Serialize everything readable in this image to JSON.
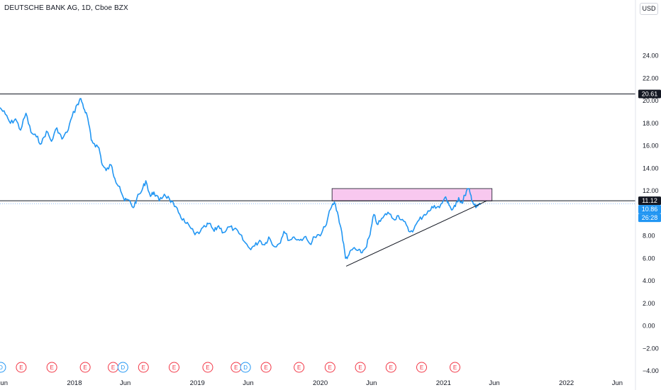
{
  "header": {
    "title": "DEUTSCHE BANK AG, 1D, Cboe BZX",
    "currency": "USD"
  },
  "colors": {
    "price_line": "#2196f3",
    "zone_fill": "#f8c8ef",
    "horizontal_line": "#131722",
    "event_E": "#f23645",
    "event_D": "#2196f3",
    "last_price_tag": "#2196f3",
    "level_tag": "#131722"
  },
  "chart_data": {
    "type": "line",
    "title": "DEUTSCHE BANK AG, 1D, Cboe BZX",
    "xlabel": "",
    "ylabel": "",
    "ylim": [
      -4.0,
      26.0
    ],
    "xlim": [
      "2017-05-25",
      "2022-07-25"
    ],
    "y_ticks": [
      "24.00",
      "22.00",
      "20.00",
      "18.00",
      "16.00",
      "14.00",
      "12.00",
      "10.00",
      "8.00",
      "6.00",
      "4.00",
      "2.00",
      "0.00",
      "−2.00",
      "−4.00"
    ],
    "x_ticks": [
      {
        "label": "Jun",
        "date": "2017-06-01"
      },
      {
        "label": "2018",
        "date": "2018-01-01"
      },
      {
        "label": "Jun",
        "date": "2018-06-01"
      },
      {
        "label": "2019",
        "date": "2019-01-01"
      },
      {
        "label": "Jun",
        "date": "2019-06-01"
      },
      {
        "label": "2020",
        "date": "2020-01-01"
      },
      {
        "label": "Jun",
        "date": "2020-06-01"
      },
      {
        "label": "2021",
        "date": "2021-01-01"
      },
      {
        "label": "Jun",
        "date": "2021-06-01"
      },
      {
        "label": "2022",
        "date": "2022-01-01"
      },
      {
        "label": "Jun",
        "date": "2022-06-01"
      }
    ],
    "grid": false,
    "series": [
      {
        "values": [
          [
            "2017-05-25",
            19.4
          ],
          [
            "2017-06-10",
            18.8
          ],
          [
            "2017-06-25",
            18.0
          ],
          [
            "2017-07-10",
            18.4
          ],
          [
            "2017-07-25",
            17.4
          ],
          [
            "2017-08-10",
            18.9
          ],
          [
            "2017-08-25",
            17.2
          ],
          [
            "2017-09-10",
            16.8
          ],
          [
            "2017-09-25",
            16.2
          ],
          [
            "2017-10-10",
            17.3
          ],
          [
            "2017-10-25",
            16.4
          ],
          [
            "2017-11-10",
            17.6
          ],
          [
            "2017-11-25",
            16.6
          ],
          [
            "2017-12-10",
            17.2
          ],
          [
            "2017-12-25",
            18.6
          ],
          [
            "2018-01-10",
            19.7
          ],
          [
            "2018-01-20",
            20.2
          ],
          [
            "2018-01-31",
            19.2
          ],
          [
            "2018-02-10",
            18.4
          ],
          [
            "2018-02-20",
            16.5
          ],
          [
            "2018-03-01",
            16.2
          ],
          [
            "2018-03-15",
            15.8
          ],
          [
            "2018-03-25",
            14.3
          ],
          [
            "2018-04-05",
            13.8
          ],
          [
            "2018-04-20",
            14.3
          ],
          [
            "2018-05-01",
            13.1
          ],
          [
            "2018-05-15",
            12.4
          ],
          [
            "2018-05-30",
            11.1
          ],
          [
            "2018-06-10",
            11.2
          ],
          [
            "2018-06-25",
            10.5
          ],
          [
            "2018-07-05",
            11.3
          ],
          [
            "2018-07-20",
            12.0
          ],
          [
            "2018-08-01",
            12.9
          ],
          [
            "2018-08-15",
            11.5
          ],
          [
            "2018-08-25",
            11.9
          ],
          [
            "2018-09-10",
            11.1
          ],
          [
            "2018-09-25",
            11.7
          ],
          [
            "2018-10-10",
            11.3
          ],
          [
            "2018-10-25",
            10.6
          ],
          [
            "2018-11-10",
            9.9
          ],
          [
            "2018-11-25",
            9.2
          ],
          [
            "2018-12-10",
            8.8
          ],
          [
            "2018-12-25",
            8.1
          ],
          [
            "2019-01-10",
            8.4
          ],
          [
            "2019-01-25",
            8.8
          ],
          [
            "2019-02-05",
            9.1
          ],
          [
            "2019-02-20",
            8.4
          ],
          [
            "2019-03-05",
            8.9
          ],
          [
            "2019-03-20",
            8.3
          ],
          [
            "2019-04-05",
            8.8
          ],
          [
            "2019-04-20",
            8.6
          ],
          [
            "2019-05-05",
            8.2
          ],
          [
            "2019-05-20",
            7.5
          ],
          [
            "2019-06-05",
            6.9
          ],
          [
            "2019-06-20",
            7.1
          ],
          [
            "2019-07-05",
            7.6
          ],
          [
            "2019-07-20",
            7.2
          ],
          [
            "2019-08-01",
            7.9
          ],
          [
            "2019-08-15",
            7.1
          ],
          [
            "2019-09-01",
            7.3
          ],
          [
            "2019-09-15",
            8.4
          ],
          [
            "2019-10-01",
            7.6
          ],
          [
            "2019-10-15",
            7.9
          ],
          [
            "2019-11-01",
            7.6
          ],
          [
            "2019-11-15",
            7.9
          ],
          [
            "2019-12-01",
            7.3
          ],
          [
            "2019-12-15",
            7.9
          ],
          [
            "2020-01-01",
            8.0
          ],
          [
            "2020-01-15",
            8.8
          ],
          [
            "2020-02-01",
            10.4
          ],
          [
            "2020-02-12",
            11.0
          ],
          [
            "2020-02-24",
            9.7
          ],
          [
            "2020-03-05",
            8.3
          ],
          [
            "2020-03-16",
            6.0
          ],
          [
            "2020-03-26",
            6.3
          ],
          [
            "2020-04-08",
            6.9
          ],
          [
            "2020-04-20",
            6.7
          ],
          [
            "2020-05-01",
            6.5
          ],
          [
            "2020-05-14",
            6.9
          ],
          [
            "2020-05-28",
            8.1
          ],
          [
            "2020-06-08",
            9.9
          ],
          [
            "2020-06-20",
            9.0
          ],
          [
            "2020-07-05",
            9.6
          ],
          [
            "2020-07-20",
            10.1
          ],
          [
            "2020-08-05",
            9.5
          ],
          [
            "2020-08-20",
            9.8
          ],
          [
            "2020-09-05",
            9.3
          ],
          [
            "2020-09-20",
            8.4
          ],
          [
            "2020-10-05",
            8.6
          ],
          [
            "2020-10-20",
            9.4
          ],
          [
            "2020-11-05",
            9.9
          ],
          [
            "2020-11-20",
            10.2
          ],
          [
            "2020-12-05",
            10.7
          ],
          [
            "2020-12-20",
            10.5
          ],
          [
            "2021-01-05",
            11.4
          ],
          [
            "2021-01-15",
            11.0
          ],
          [
            "2021-01-25",
            10.3
          ],
          [
            "2021-02-05",
            10.6
          ],
          [
            "2021-02-15",
            11.4
          ],
          [
            "2021-02-25",
            10.9
          ],
          [
            "2021-03-05",
            11.6
          ],
          [
            "2021-03-15",
            12.2
          ],
          [
            "2021-03-22",
            11.7
          ],
          [
            "2021-03-29",
            11.0
          ],
          [
            "2021-04-07",
            10.5
          ],
          [
            "2021-04-14",
            10.7
          ],
          [
            "2021-04-22",
            10.86
          ]
        ]
      }
    ],
    "annotations": {
      "horizontal_levels": [
        20.61,
        11.12
      ],
      "resistance_zone": {
        "x_start": "2020-02-05",
        "x_end": "2021-05-25",
        "y_low": 11.1,
        "y_high": 12.2
      },
      "trendline": {
        "from": [
          "2020-03-18",
          5.3
        ],
        "to": [
          "2021-05-10",
          11.12
        ]
      },
      "last_price": 10.86,
      "countdown": "26:28",
      "current_price_line": 10.86
    },
    "price_tags": [
      {
        "label": "20.61",
        "value": 20.61,
        "kind": "level"
      },
      {
        "label": "11.12",
        "value": 11.12,
        "kind": "level"
      },
      {
        "label": "10.86",
        "value": 10.86,
        "kind": "last"
      },
      {
        "label": "26:28",
        "value": 10.86,
        "kind": "countdown"
      }
    ],
    "events": [
      {
        "type": "D",
        "date": "2017-05-27"
      },
      {
        "type": "E",
        "date": "2017-07-27"
      },
      {
        "type": "E",
        "date": "2017-10-26"
      },
      {
        "type": "E",
        "date": "2018-02-02"
      },
      {
        "type": "E",
        "date": "2018-04-26"
      },
      {
        "type": "D",
        "date": "2018-05-25"
      },
      {
        "type": "E",
        "date": "2018-07-25"
      },
      {
        "type": "E",
        "date": "2018-10-24"
      },
      {
        "type": "E",
        "date": "2019-02-01"
      },
      {
        "type": "E",
        "date": "2019-04-26"
      },
      {
        "type": "D",
        "date": "2019-05-24"
      },
      {
        "type": "E",
        "date": "2019-07-24"
      },
      {
        "type": "E",
        "date": "2019-10-30"
      },
      {
        "type": "E",
        "date": "2020-01-30"
      },
      {
        "type": "E",
        "date": "2020-04-29"
      },
      {
        "type": "E",
        "date": "2020-07-29"
      },
      {
        "type": "E",
        "date": "2020-10-28"
      },
      {
        "type": "E",
        "date": "2021-02-04"
      }
    ]
  }
}
